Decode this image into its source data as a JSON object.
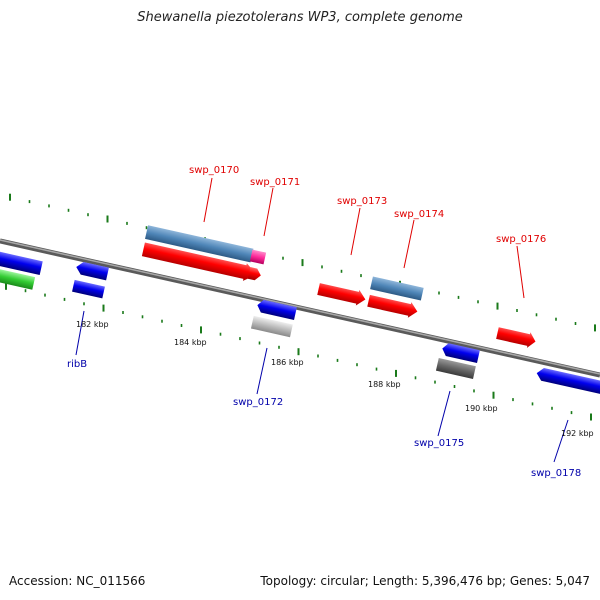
{
  "title": "Shewanella piezotolerans WP3, complete genome",
  "footer": {
    "accession": "Accession: NC_011566",
    "topology": "Topology: circular; Length: 5,396,476 bp; Genes: 5,047"
  },
  "colors": {
    "backbone": "#7f7f7f",
    "tick": "#1a7a1a",
    "forward_gene": "#ff0000",
    "reverse_gene": "#0000ee",
    "label_forward": "#e00000",
    "label_reverse": "#0000aa",
    "steelblue_feature": "#4f86b8",
    "magenta_feature": "#ff2a9a",
    "green_feature": "#33cc33",
    "gray_feature": "#bbbbbb",
    "darkgray_feature": "#666666"
  },
  "kbp_labels": [
    {
      "id": "182",
      "text": "182 kbp"
    },
    {
      "id": "184",
      "text": "184 kbp"
    },
    {
      "id": "186",
      "text": "186 kbp"
    },
    {
      "id": "188",
      "text": "188 kbp"
    },
    {
      "id": "190",
      "text": "190 kbp"
    },
    {
      "id": "192",
      "text": "192 kbp"
    }
  ],
  "gene_labels": [
    {
      "id": "swp_0170",
      "text": "swp_0170",
      "strand": "forward"
    },
    {
      "id": "swp_0171",
      "text": "swp_0171",
      "strand": "forward"
    },
    {
      "id": "swp_0173",
      "text": "swp_0173",
      "strand": "forward"
    },
    {
      "id": "swp_0174",
      "text": "swp_0174",
      "strand": "forward"
    },
    {
      "id": "swp_0176",
      "text": "swp_0176",
      "strand": "forward"
    },
    {
      "id": "ribB",
      "text": "ribB",
      "strand": "reverse"
    },
    {
      "id": "swp_0172",
      "text": "swp_0172",
      "strand": "reverse"
    },
    {
      "id": "swp_0175",
      "text": "swp_0175",
      "strand": "reverse"
    },
    {
      "id": "swp_0178",
      "text": "swp_0178",
      "strand": "reverse"
    }
  ]
}
